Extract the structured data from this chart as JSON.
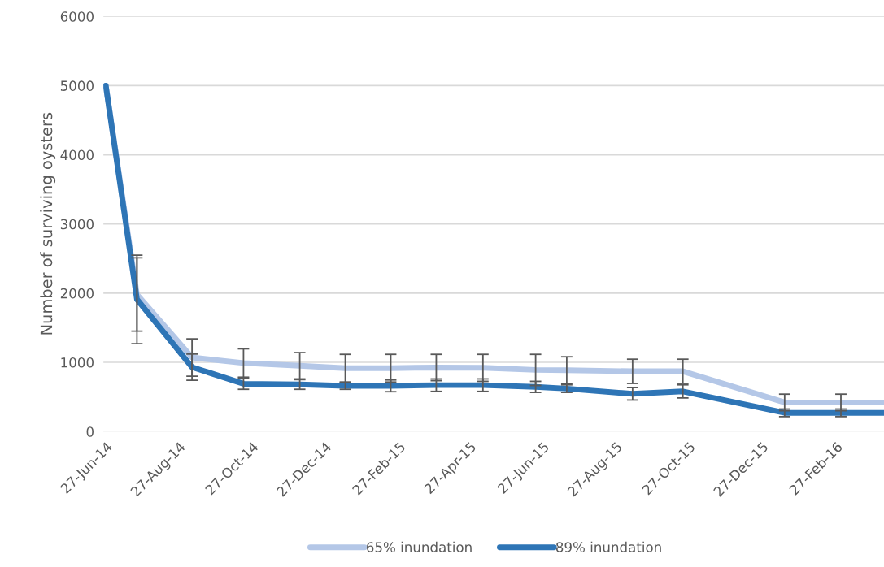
{
  "chart_data": {
    "type": "line",
    "ylabel": "Number of surviving oysters",
    "x": [
      "2014-06-27",
      "2014-07-23",
      "2014-09-07",
      "2014-10-20",
      "2014-12-06",
      "2015-01-13",
      "2015-02-20",
      "2015-03-30",
      "2015-05-08",
      "2015-06-21",
      "2015-07-17",
      "2015-09-10",
      "2015-10-22",
      "2016-01-15",
      "2016-03-02",
      "2016-04-07"
    ],
    "series": [
      {
        "name": "65% inundation",
        "color": "#b4c7e7",
        "values": [
          5000,
          1980,
          1070,
          990,
          950,
          915,
          915,
          925,
          920,
          890,
          885,
          870,
          870,
          420,
          420,
          420
        ],
        "errors": [
          null,
          530,
          270,
          205,
          190,
          200,
          200,
          190,
          195,
          225,
          195,
          175,
          175,
          120,
          120,
          null
        ]
      },
      {
        "name": "89% inundation",
        "color": "#2e75b6",
        "values": [
          5000,
          1910,
          930,
          690,
          680,
          660,
          660,
          670,
          670,
          645,
          620,
          545,
          580,
          270,
          270,
          270
        ],
        "errors": [
          null,
          640,
          190,
          80,
          70,
          50,
          85,
          90,
          90,
          80,
          55,
          90,
          95,
          55,
          55,
          null
        ]
      }
    ],
    "xlim": [
      "2014-06-25",
      "2016-04-07"
    ],
    "xticks": [
      {
        "value": "2014-06-27",
        "label": "27-Jun-14"
      },
      {
        "value": "2014-08-27",
        "label": "27-Aug-14"
      },
      {
        "value": "2014-10-27",
        "label": "27-Oct-14"
      },
      {
        "value": "2014-12-27",
        "label": "27-Dec-14"
      },
      {
        "value": "2015-02-27",
        "label": "27-Feb-15"
      },
      {
        "value": "2015-04-27",
        "label": "27-Apr-15"
      },
      {
        "value": "2015-06-27",
        "label": "27-Jun-15"
      },
      {
        "value": "2015-08-27",
        "label": "27-Aug-15"
      },
      {
        "value": "2015-10-27",
        "label": "27-Oct-15"
      },
      {
        "value": "2015-12-27",
        "label": "27-Dec-15"
      },
      {
        "value": "2016-02-27",
        "label": "27-Feb-16"
      }
    ],
    "ylim": [
      0,
      6000
    ],
    "yticks": [
      0,
      1000,
      2000,
      3000,
      4000,
      5000,
      6000
    ],
    "grid": "y",
    "legend": "bottom",
    "marker": "none",
    "line_style": "solid"
  }
}
